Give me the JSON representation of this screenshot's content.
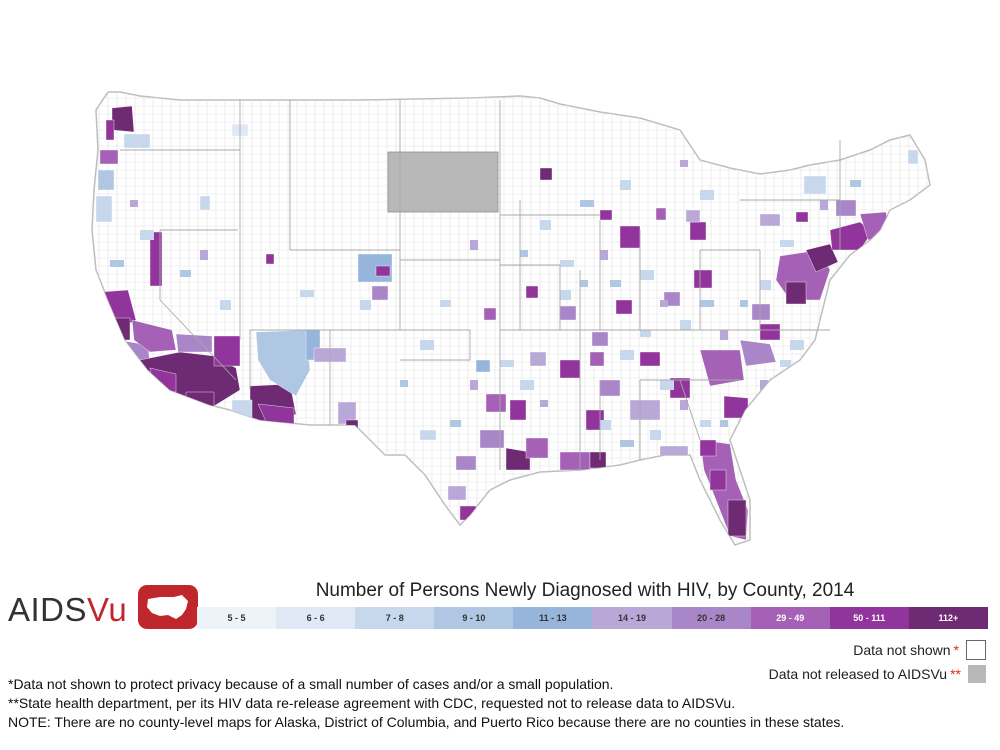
{
  "map": {
    "title": "Number of Persons Newly Diagnosed with HIV, by County, 2014",
    "legend": {
      "bins": [
        {
          "label": "5 - 5",
          "color": "#eef3fa"
        },
        {
          "label": "6 - 6",
          "color": "#dfe8f4"
        },
        {
          "label": "7 - 8",
          "color": "#c7d7ec"
        },
        {
          "label": "9 - 10",
          "color": "#b0c7e3"
        },
        {
          "label": "11 - 13",
          "color": "#97b4db"
        },
        {
          "label": "14 - 19",
          "color": "#b9a7d7"
        },
        {
          "label": "20 - 28",
          "color": "#a886c8"
        },
        {
          "label": "29 - 49",
          "color": "#a561b5"
        },
        {
          "label": "50 - 111",
          "color": "#91349b"
        },
        {
          "label": "112+",
          "color": "#6e2a72"
        }
      ],
      "data_not_shown": {
        "label": "Data not shown",
        "mark": "*"
      },
      "data_not_released": {
        "label": "Data not released to AIDSVu",
        "mark": "**",
        "color": "#b8b8b8"
      }
    },
    "state_not_released": "South Dakota",
    "land_color": "#ffffff",
    "border_color": "#c8c8c8"
  },
  "logo": {
    "text_a": "AIDS",
    "text_b": "Vu",
    "icon": "us-map-icon",
    "color": "#c0272d"
  },
  "notes": [
    "*Data not shown to protect privacy because of a small number of cases and/or a small population.",
    "**State health department, per its HIV data re-release agreement with CDC, requested not to release data to AIDSVu.",
    "NOTE: There are no county-level maps for Alaska, District of Columbia, and Puerto Rico because there are no counties in these states."
  ]
}
